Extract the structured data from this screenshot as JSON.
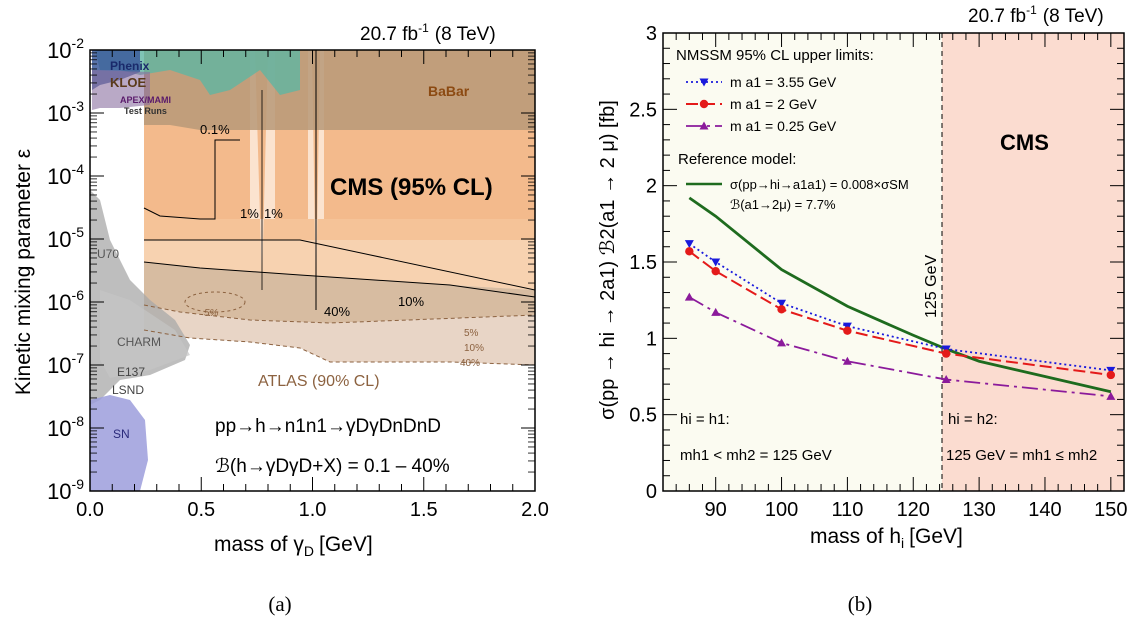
{
  "panel_a": {
    "lumi": "20.7 fb",
    "lumi_sup": "-1",
    "lumi_energy": "(8 TeV)",
    "ylabel": "Kinetic mixing parameter ε",
    "xlabel": "mass of γ",
    "xlabel_sub": "D",
    "xlabel_unit": "[GeV]",
    "cms_label": "CMS (95% CL)",
    "atlas_label": "ATLAS (90% CL)",
    "process": "pp→h→n1n1→γDγDnDnD",
    "br": "ℬ(h→γDγD+X) = 0.1 – 40%",
    "contour_labels": [
      "0.1%",
      "1%",
      "1%",
      "10%",
      "40%",
      "5%",
      "5%",
      "10%",
      "40%"
    ],
    "exp_labels": {
      "phenix": "Phenix",
      "kloe": "KLOE",
      "apex": "APEX/MAMI",
      "testruns": "Test Runs",
      "babar": "BaBar",
      "u70": "U70",
      "charm": "CHARM",
      "e137": "E137",
      "lsnd": "LSND",
      "sn": "SN"
    },
    "caption": "(a)"
  },
  "panel_b": {
    "lumi": "20.7 fb",
    "lumi_sup": "-1",
    "lumi_energy": "(8 TeV)",
    "xlabel": "mass of h",
    "xlabel_sub": "i",
    "xlabel_unit": "[GeV]",
    "ylabel": "σ(pp → hi → 2a1) ℬ2(a1 → 2 μ) [fb]",
    "legend_title": "NMSSM 95% CL upper limits:",
    "legend_entries": [
      "m a1 = 3.55 GeV",
      "m a1 = 2 GeV",
      "m a1 = 0.25 GeV"
    ],
    "ref_title": "Reference model:",
    "ref_line1": "σ(pp→hi→a1a1) = 0.008×σSM",
    "ref_line2": "ℬ(a1→2μ) = 7.7%",
    "cms_label": "CMS",
    "vline_label": "125 GeV",
    "region_left_1": "hi = h1:",
    "region_left_2": "mh1 < mh2 = 125 GeV",
    "region_right_1": "hi = h2:",
    "region_right_2": "125 GeV = mh1 ≤ mh2",
    "caption": "(b)"
  },
  "chart_data": [
    {
      "type": "area",
      "title": "",
      "xlabel": "mass of γD [GeV]",
      "ylabel": "Kinetic mixing parameter ε",
      "xlim": [
        0.0,
        2.0
      ],
      "ylim": [
        1e-09,
        0.01
      ],
      "yscale": "log",
      "x_ticks": [
        "0.0",
        "0.5",
        "1.0",
        "1.5",
        "2.0"
      ],
      "y_ticks": [
        "10^-9",
        "10^-8",
        "10^-7",
        "10^-6",
        "10^-5",
        "10^-4",
        "10^-3",
        "10^-2"
      ],
      "series": [
        {
          "name": "0.1%",
          "x": [
            0.25,
            0.3,
            0.5,
            0.6,
            0.7,
            1.0,
            2.0
          ],
          "y": [
            1e-05,
            1.6e-05,
            2e-05,
            2e-05,
            2e-05,
            2e-05,
            2e-05
          ]
        },
        {
          "name": "10%",
          "x": [
            0.25,
            0.5,
            1.0,
            1.5,
            2.0
          ],
          "y": [
            3e-06,
            2.5e-06,
            2e-06,
            1.5e-06,
            1.2e-06
          ]
        },
        {
          "name": "40%",
          "x": [
            0.25,
            0.5,
            1.0,
            1.5,
            2.0
          ],
          "y": [
            2e-06,
            1.6e-06,
            1.1e-06,
            8e-07,
            6e-07
          ]
        }
      ],
      "grid": false
    },
    {
      "type": "line",
      "title": "",
      "xlabel": "mass of hi [GeV]",
      "ylabel": "σ(pp → hi → 2a1) ℬ2(a1 → 2 μ) [fb]",
      "xlim": [
        82,
        152
      ],
      "ylim": [
        0,
        3
      ],
      "x_ticks": [
        90,
        100,
        110,
        120,
        130,
        140,
        150
      ],
      "y_ticks": [
        0,
        0.5,
        1,
        1.5,
        2,
        2.5,
        3
      ],
      "series": [
        {
          "name": "m a1 = 3.55 GeV",
          "color": "#1a1adc",
          "x": [
            86,
            90,
            100,
            110,
            125,
            150
          ],
          "y": [
            1.62,
            1.5,
            1.23,
            1.08,
            0.93,
            0.79
          ]
        },
        {
          "name": "m a1 = 2 GeV",
          "color": "#e41a1a",
          "x": [
            86,
            90,
            100,
            110,
            125,
            150
          ],
          "y": [
            1.57,
            1.44,
            1.19,
            1.05,
            0.9,
            0.76
          ]
        },
        {
          "name": "m a1 = 0.25 GeV",
          "color": "#8b1a9b",
          "x": [
            86,
            90,
            100,
            110,
            125,
            150
          ],
          "y": [
            1.27,
            1.17,
            0.97,
            0.85,
            0.73,
            0.62
          ]
        },
        {
          "name": "σ(pp→hi→a1a1) = 0.008×σSM",
          "color": "#1e6b1e",
          "x": [
            86,
            90,
            100,
            110,
            120,
            125,
            130,
            140,
            150
          ],
          "y": [
            1.92,
            1.8,
            1.45,
            1.21,
            1.02,
            0.93,
            0.85,
            0.75,
            0.65
          ]
        }
      ],
      "vline": 125,
      "legend": "top-left"
    }
  ]
}
